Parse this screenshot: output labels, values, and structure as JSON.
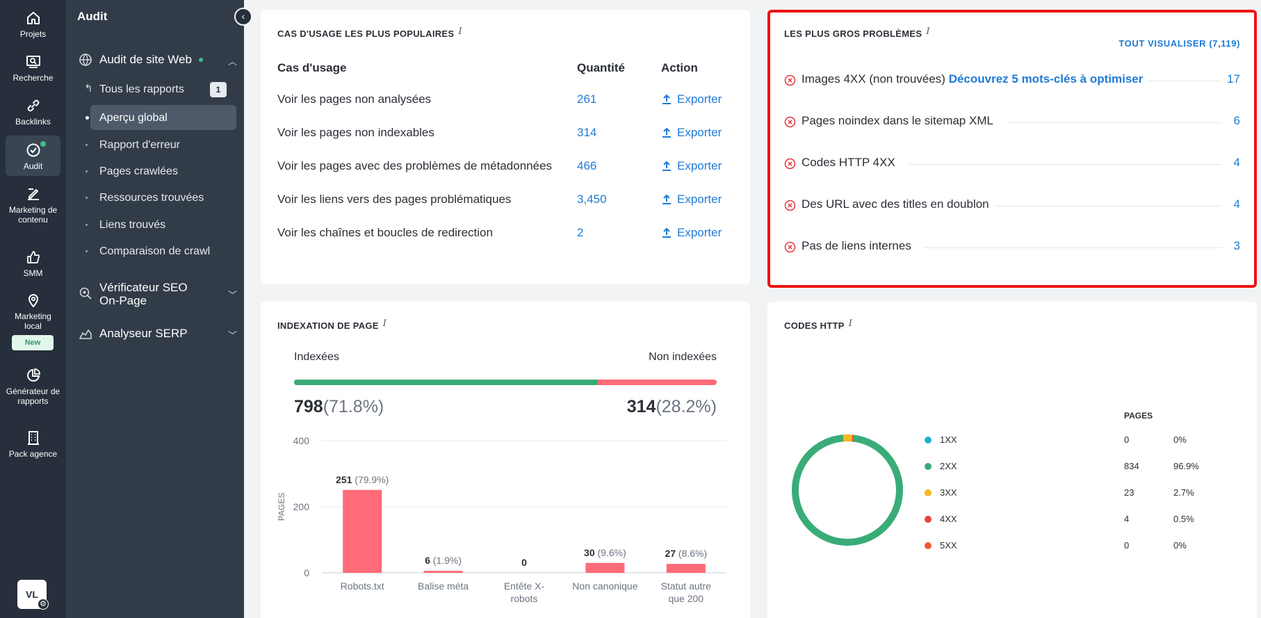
{
  "rail": {
    "items": [
      {
        "label": "Projets"
      },
      {
        "label": "Recherche"
      },
      {
        "label": "Backlinks"
      },
      {
        "label": "Audit"
      },
      {
        "label": "Marketing de contenu"
      },
      {
        "label": "SMM"
      },
      {
        "label": "Marketing local"
      },
      {
        "label": "Générateur de rapports"
      },
      {
        "label": "Pack agence"
      }
    ],
    "new_badge": "New",
    "avatar": "VL"
  },
  "sidebar": {
    "title": "Audit",
    "groups": [
      {
        "label": "Audit de site Web"
      },
      {
        "label": "Vérificateur SEO On-Page"
      },
      {
        "label": "Analyseur SERP"
      }
    ],
    "sub_items": [
      {
        "label": "Tous les rapports",
        "badge": "1"
      },
      {
        "label": "Aperçu global"
      },
      {
        "label": "Rapport d'erreur"
      },
      {
        "label": "Pages crawlées"
      },
      {
        "label": "Ressources trouvées"
      },
      {
        "label": "Liens trouvés"
      },
      {
        "label": "Comparaison de crawl"
      }
    ]
  },
  "use_cases": {
    "title": "CAS D'USAGE LES PLUS POPULAIRES",
    "info": "i",
    "headers": {
      "case": "Cas d'usage",
      "qty": "Quantité",
      "action": "Action"
    },
    "rows": [
      {
        "label": "Voir les pages non analysées",
        "qty": "261",
        "action": "Exporter"
      },
      {
        "label": "Voir les pages non indexables",
        "qty": "314",
        "action": "Exporter"
      },
      {
        "label": "Voir les pages avec des problèmes de métadonnées",
        "qty": "466",
        "action": "Exporter"
      },
      {
        "label": "Voir les liens vers des pages problématiques",
        "qty": "3,450",
        "action": "Exporter"
      },
      {
        "label": "Voir les chaînes et boucles de redirection",
        "qty": "2",
        "action": "Exporter"
      }
    ]
  },
  "issues": {
    "title": "LES PLUS GROS PROBLÈMES",
    "info": "i",
    "view_all": "TOUT VISUALISER (7,119)",
    "rows": [
      {
        "label": "Images 4XX (non trouvées)",
        "link": "Découvrez 5 mots-clés à optimiser",
        "value": "17"
      },
      {
        "label": "Pages noindex dans le sitemap XML",
        "link": "",
        "value": "6"
      },
      {
        "label": "Codes HTTP 4XX",
        "link": "",
        "value": "4"
      },
      {
        "label": "Des URL avec des titles en doublon",
        "link": "",
        "value": "4"
      },
      {
        "label": "Pas de liens internes",
        "link": "",
        "value": "3"
      }
    ]
  },
  "indexation": {
    "title": "INDEXATION DE PAGE",
    "info": "i",
    "indexed_label": "Indexées",
    "non_indexed_label": "Non indexées",
    "indexed_value": "798",
    "indexed_pct": "(71.8%)",
    "non_indexed_value": "314",
    "non_indexed_pct": "(28.2%)",
    "indexed_fraction": 0.718,
    "colors": {
      "indexed": "#3aac78",
      "non_indexed": "#ff6b77"
    }
  },
  "chart_data": {
    "type": "bar",
    "categories": [
      "Robots.txt",
      "Balise méta",
      "Entête X-robots",
      "Non canonique",
      "Statut autre que 200"
    ],
    "values": [
      251,
      6,
      0,
      30,
      27
    ],
    "data_labels": [
      "251",
      "6",
      "0",
      "30",
      "27"
    ],
    "data_pcts": [
      "(79.9%)",
      "(1.9%)",
      "",
      "(9.6%)",
      "(8.6%)"
    ],
    "ylabel": "PAGES",
    "ylim": [
      0,
      400
    ],
    "yticks": [
      0,
      200,
      400
    ],
    "grid": true,
    "bar_color": "#ff6b77"
  },
  "http_codes": {
    "title": "CODES HTTP",
    "info": "i",
    "pages_header": "PAGES",
    "rows": [
      {
        "code": "1XX",
        "pages": "0",
        "pct": "0%",
        "color": "#1fb3cf",
        "value": 0
      },
      {
        "code": "2XX",
        "pages": "834",
        "pct": "96.9%",
        "color": "#3aac78",
        "value": 834
      },
      {
        "code": "3XX",
        "pages": "23",
        "pct": "2.7%",
        "color": "#f5b921",
        "value": 23
      },
      {
        "code": "4XX",
        "pages": "4",
        "pct": "0.5%",
        "color": "#e8423f",
        "value": 4
      },
      {
        "code": "5XX",
        "pages": "0",
        "pct": "0%",
        "color": "#ee5a34",
        "value": 0
      }
    ]
  }
}
